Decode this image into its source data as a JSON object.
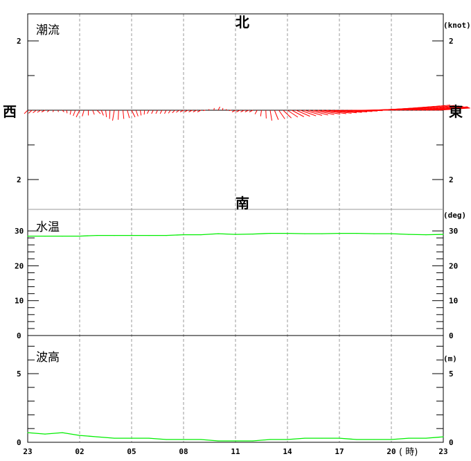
{
  "colors": {
    "current": "#ff0000",
    "temperature": "#00ee00",
    "wave": "#00ee00",
    "grid": "#999999"
  },
  "chart_data": [
    {
      "type": "vector",
      "title": "潮流",
      "unit": "(knot)",
      "directions": {
        "north": "北",
        "south": "南",
        "west": "西",
        "east": "東"
      },
      "ytick_labels": [
        "2",
        "2"
      ],
      "ylim": [
        -2.6,
        2.8
      ],
      "x_hours": [
        0,
        1,
        2,
        3,
        4,
        5,
        6,
        7,
        8,
        9,
        10,
        11,
        12,
        13,
        14,
        15,
        16,
        17,
        18,
        19,
        20,
        21,
        22,
        23,
        24
      ],
      "east_knot": [
        0.1,
        0.1,
        -0.05,
        0.1,
        -0.1,
        0.05,
        -0.1,
        0.05,
        0.05,
        0.1,
        0.1,
        -0.05,
        0.1,
        0.1,
        -0.05,
        -0.3,
        -0.5,
        -0.7,
        -0.8,
        -0.9,
        -1.0,
        -1.1,
        -1.2,
        -1.2,
        -0.8
      ],
      "north_knot": [
        -0.1,
        -0.05,
        -0.05,
        -0.2,
        -0.1,
        -0.3,
        -0.2,
        -0.1,
        -0.1,
        -0.05,
        -0.05,
        0.1,
        -0.05,
        -0.05,
        -0.3,
        -0.2,
        -0.15,
        -0.1,
        -0.05,
        0.0,
        0.05,
        0.1,
        0.15,
        0.1,
        0.05
      ]
    },
    {
      "type": "line",
      "title": "水温",
      "unit": "(deg)",
      "ytick_labels": [
        "30",
        "20",
        "10",
        "0"
      ],
      "ylim": [
        0,
        30.2
      ],
      "x_hours": [
        0,
        1,
        2,
        3,
        4,
        5,
        6,
        7,
        8,
        9,
        10,
        11,
        12,
        13,
        14,
        15,
        16,
        17,
        18,
        19,
        20,
        21,
        22,
        23,
        24
      ],
      "values": [
        28.5,
        28.5,
        28.5,
        28.5,
        28.7,
        28.7,
        28.7,
        28.7,
        28.7,
        28.9,
        28.9,
        29.2,
        29.0,
        29.1,
        29.3,
        29.3,
        29.2,
        29.2,
        29.3,
        29.3,
        29.2,
        29.2,
        29.0,
        28.9,
        29.0
      ]
    },
    {
      "type": "line",
      "title": "波高",
      "unit": "(m)",
      "ytick_labels": [
        "5",
        "0"
      ],
      "ylim": [
        0,
        7.7
      ],
      "x_hours": [
        0,
        1,
        2,
        3,
        4,
        5,
        6,
        7,
        8,
        9,
        10,
        11,
        12,
        13,
        14,
        15,
        16,
        17,
        18,
        19,
        20,
        21,
        22,
        23,
        24
      ],
      "values": [
        0.7,
        0.6,
        0.7,
        0.5,
        0.4,
        0.3,
        0.3,
        0.3,
        0.2,
        0.2,
        0.2,
        0.1,
        0.1,
        0.1,
        0.2,
        0.2,
        0.3,
        0.3,
        0.3,
        0.2,
        0.2,
        0.2,
        0.3,
        0.3,
        0.4
      ]
    }
  ],
  "xaxis": {
    "tick_labels": [
      "23",
      "02",
      "05",
      "08",
      "11",
      "14",
      "17",
      "20",
      "23"
    ],
    "unit": "( 時)"
  }
}
